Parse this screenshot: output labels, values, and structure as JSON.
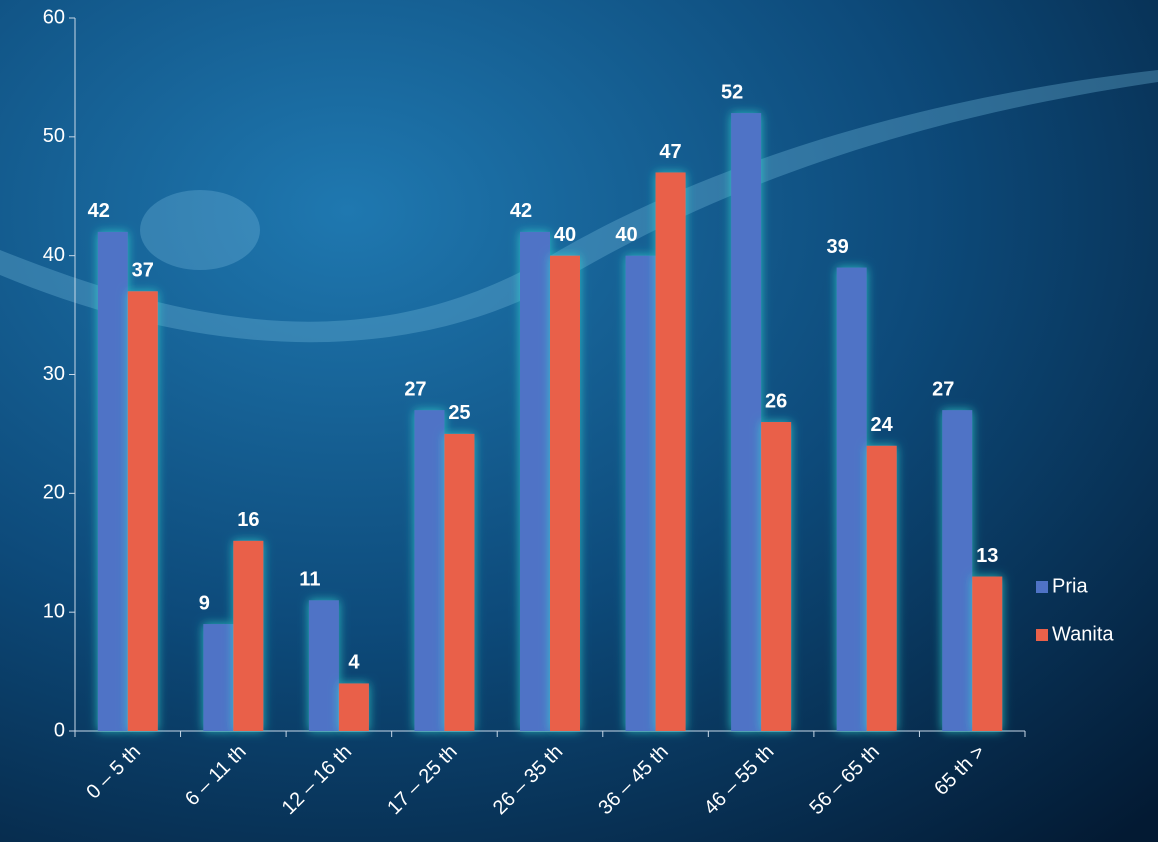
{
  "chart_data": {
    "type": "bar",
    "categories": [
      "0 – 5 th",
      "6 – 11 th",
      "12 – 16 th",
      "17 – 25 th",
      "26 – 35 th",
      "36 – 45 th",
      "46 – 55 th",
      "56 – 65 th",
      "65 th >"
    ],
    "series": [
      {
        "name": "Pria",
        "color": "#4f73c6",
        "values": [
          42,
          9,
          11,
          27,
          42,
          40,
          52,
          39,
          27
        ]
      },
      {
        "name": "Wanita",
        "color": "#e9614a",
        "values": [
          37,
          16,
          4,
          25,
          40,
          47,
          26,
          24,
          13
        ]
      }
    ],
    "ylim": [
      0,
      60
    ],
    "yticks": [
      0,
      10,
      20,
      30,
      40,
      50,
      60
    ],
    "legend": "right"
  }
}
